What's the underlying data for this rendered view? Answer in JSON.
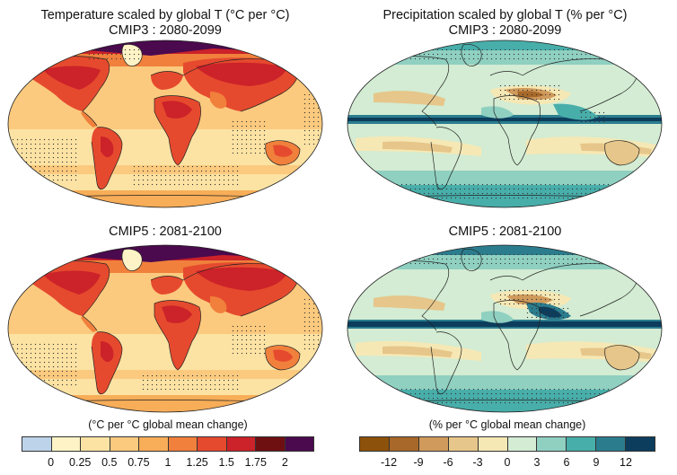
{
  "panels": {
    "temp_top": {
      "line1": "Temperature scaled by global T (°C per °C)",
      "line2": "CMIP3 : 2080-2099"
    },
    "precip_top": {
      "line1": "Precipitation scaled by global T (% per °C)",
      "line2": "CMIP3 : 2080-2099"
    },
    "temp_bottom": {
      "line1": "CMIP5 : 2081-2100"
    },
    "precip_bottom": {
      "line1": "CMIP5 : 2081-2100"
    }
  },
  "colorbars": {
    "temperature": {
      "label": "(°C per °C global mean change)",
      "colors": [
        "#bcd3ea",
        "#fdf3c6",
        "#fce3a4",
        "#fbca7e",
        "#f8ad58",
        "#f0803c",
        "#e64a2e",
        "#cc2229",
        "#6e0f12",
        "#4b0a4e"
      ],
      "ticks": [
        "0",
        "0.25",
        "0.5",
        "0.75",
        "1",
        "1.25",
        "1.5",
        "1.75",
        "2"
      ]
    },
    "precipitation": {
      "label": "(% per °C global mean change)",
      "colors": [
        "#8c510a",
        "#a8682a",
        "#cf9a5c",
        "#e6c68a",
        "#f6e8b4",
        "#d3ecd3",
        "#8fd0c1",
        "#48aeaa",
        "#2b7d8e",
        "#0d3d5c"
      ],
      "ticks": [
        "-12",
        "-9",
        "-6",
        "-3",
        "0",
        "3",
        "6",
        "9",
        "12"
      ]
    }
  }
}
